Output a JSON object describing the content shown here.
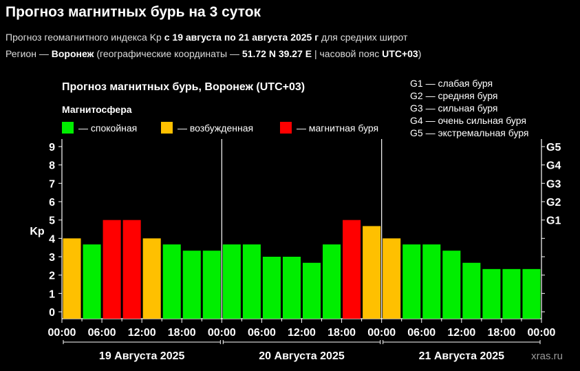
{
  "header": {
    "title": "Прогноз магнитных бурь на 3 суток",
    "subtitle_parts": [
      {
        "text": "Прогноз геомагнитного индекса Kp ",
        "bold": false
      },
      {
        "text": "с 19 августа по 21 августа 2025 г",
        "bold": true
      },
      {
        "text": " для средних широт",
        "bold": false
      }
    ],
    "region_parts": [
      {
        "text": "Регион — ",
        "bold": false
      },
      {
        "text": "Воронеж",
        "bold": true
      },
      {
        "text": " (географические координаты — ",
        "bold": false
      },
      {
        "text": "51.72 N 39.27 E",
        "bold": true
      },
      {
        "text": " | часовой пояс ",
        "bold": false
      },
      {
        "text": "UTC+03",
        "bold": true
      },
      {
        "text": ")",
        "bold": false
      }
    ]
  },
  "chart_data": {
    "type": "bar",
    "title": "Прогноз магнитных бурь, Воронеж (UTC+03)",
    "ylabel": "Kp",
    "ylim": [
      0,
      9
    ],
    "yticks": [
      "0",
      "1",
      "2",
      "3",
      "4",
      "5",
      "6",
      "7",
      "8",
      "9"
    ],
    "right_ticks": [
      {
        "value": 5,
        "label": "G1"
      },
      {
        "value": 6,
        "label": "G2"
      },
      {
        "value": 7,
        "label": "G3"
      },
      {
        "value": 8,
        "label": "G4"
      },
      {
        "value": 9,
        "label": "G5"
      }
    ],
    "legend": {
      "title": "Магнитосфера",
      "placement": "top-left",
      "items": [
        {
          "label": "— спокойная",
          "color": "#00ee00"
        },
        {
          "label": "— возбужденная",
          "color": "#ffc000"
        },
        {
          "label": "— магнитная буря",
          "color": "#ff0000"
        }
      ]
    },
    "storm_legend": [
      "G1 — слабая буря",
      "G2 — средняя буря",
      "G3 — сильная буря",
      "G4 — очень сильная буря",
      "G5 — экстремальная буря"
    ],
    "colors": {
      "quiet": "#00ee00",
      "active": "#ffc000",
      "storm": "#ff0000"
    },
    "days": [
      {
        "label": "19 Августа 2025",
        "values": [
          4.0,
          3.67,
          5.0,
          5.0,
          4.0,
          3.67,
          3.33,
          3.33
        ],
        "levels": [
          "active",
          "quiet",
          "storm",
          "storm",
          "active",
          "quiet",
          "quiet",
          "quiet"
        ]
      },
      {
        "label": "20 Августа 2025",
        "values": [
          3.67,
          3.67,
          3.0,
          3.0,
          2.67,
          3.67,
          5.0,
          4.67
        ],
        "levels": [
          "quiet",
          "quiet",
          "quiet",
          "quiet",
          "quiet",
          "quiet",
          "storm",
          "active"
        ]
      },
      {
        "label": "21 Августа 2025",
        "values": [
          4.0,
          3.67,
          3.67,
          3.33,
          2.67,
          2.33,
          2.33,
          2.33
        ],
        "levels": [
          "active",
          "quiet",
          "quiet",
          "quiet",
          "quiet",
          "quiet",
          "quiet",
          "quiet"
        ]
      }
    ],
    "time_labels": [
      "00:00",
      "06:00",
      "12:00",
      "18:00",
      "00:00",
      "06:00",
      "12:00",
      "18:00",
      "00:00",
      "06:00",
      "12:00",
      "18:00",
      "00:00"
    ],
    "grid": false,
    "watermark": "xras.ru"
  }
}
